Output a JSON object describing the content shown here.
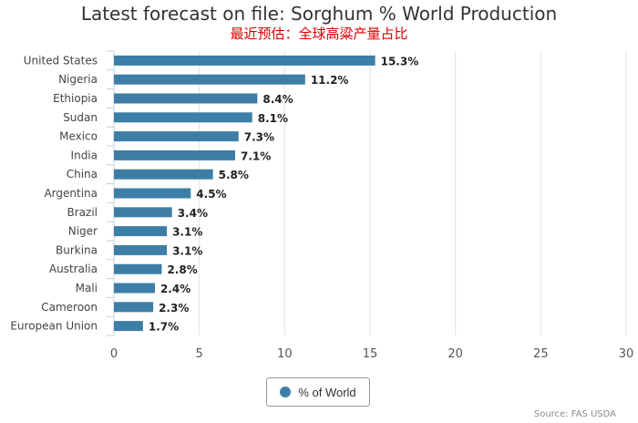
{
  "title": "Latest forecast on file: Sorghum % World Production",
  "subtitle": "最近预估：全球高粱产量占比",
  "source": "Source: FAS USDA",
  "colors": {
    "bar": "#3d7ea6",
    "subtitle": "#e00000"
  },
  "chart_data": {
    "type": "bar",
    "orientation": "horizontal",
    "categories": [
      "United States",
      "Nigeria",
      "Ethiopia",
      "Sudan",
      "Mexico",
      "India",
      "China",
      "Argentina",
      "Brazil",
      "Niger",
      "Burkina",
      "Australia",
      "Mali",
      "Cameroon",
      "European Union"
    ],
    "series": [
      {
        "name": "% of World",
        "values": [
          15.3,
          11.2,
          8.4,
          8.1,
          7.3,
          7.1,
          5.8,
          4.5,
          3.4,
          3.1,
          3.1,
          2.8,
          2.4,
          2.3,
          1.7
        ],
        "data_labels": [
          "15.3%",
          "11.2%",
          "8.4%",
          "8.1%",
          "7.3%",
          "7.1%",
          "5.8%",
          "4.5%",
          "3.4%",
          "3.1%",
          "3.1%",
          "2.8%",
          "2.4%",
          "2.3%",
          "1.7%"
        ]
      }
    ],
    "xlim": [
      0,
      30
    ],
    "xticks": [
      "0",
      "5",
      "10",
      "15",
      "20",
      "25",
      "30"
    ],
    "grid": true,
    "legend_position": "bottom-center"
  }
}
